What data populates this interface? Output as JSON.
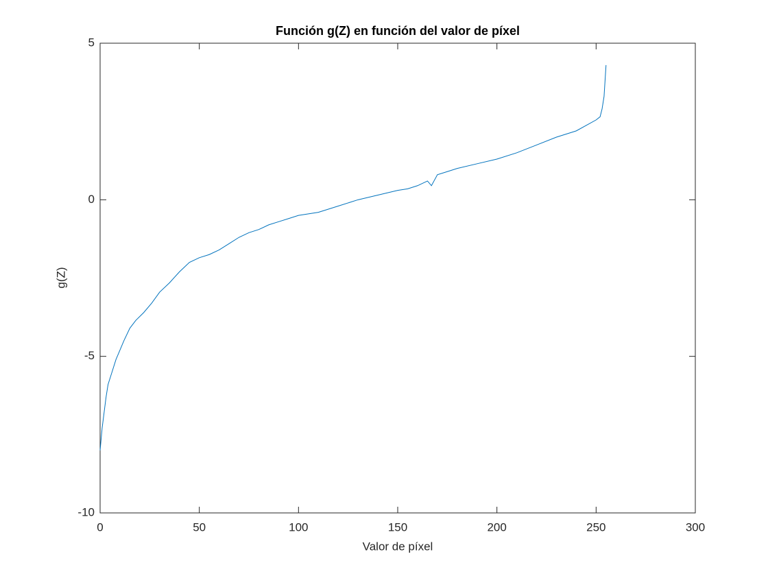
{
  "chart_data": {
    "type": "line",
    "title": "Función g(Z) en función del valor de píxel",
    "x_label": "Valor de píxel",
    "y_label": "g(Z)",
    "xlim": [
      0,
      300
    ],
    "ylim": [
      -10,
      5
    ],
    "xticks": [
      0,
      50,
      100,
      150,
      200,
      250,
      300
    ],
    "yticks": [
      -10,
      -5,
      0,
      5
    ],
    "grid": false,
    "series": [
      {
        "name": "g(Z)",
        "color": "#0072bd",
        "x": [
          0,
          1,
          2,
          3,
          4,
          6,
          8,
          10,
          12,
          15,
          18,
          22,
          26,
          30,
          35,
          40,
          45,
          50,
          55,
          60,
          65,
          70,
          75,
          80,
          85,
          90,
          95,
          100,
          110,
          120,
          130,
          140,
          150,
          155,
          160,
          165,
          167,
          170,
          175,
          180,
          190,
          200,
          210,
          220,
          230,
          240,
          250,
          252,
          253,
          254,
          255
        ],
        "values": [
          -8.0,
          -7.3,
          -6.8,
          -6.3,
          -5.9,
          -5.5,
          -5.1,
          -4.8,
          -4.5,
          -4.1,
          -3.85,
          -3.6,
          -3.3,
          -2.95,
          -2.65,
          -2.3,
          -2.0,
          -1.85,
          -1.75,
          -1.6,
          -1.4,
          -1.2,
          -1.05,
          -0.95,
          -0.8,
          -0.7,
          -0.6,
          -0.5,
          -0.4,
          -0.2,
          0.0,
          0.15,
          0.3,
          0.35,
          0.45,
          0.6,
          0.45,
          0.8,
          0.9,
          1.0,
          1.15,
          1.3,
          1.5,
          1.75,
          2.0,
          2.2,
          2.55,
          2.65,
          2.9,
          3.3,
          4.3
        ]
      }
    ]
  }
}
